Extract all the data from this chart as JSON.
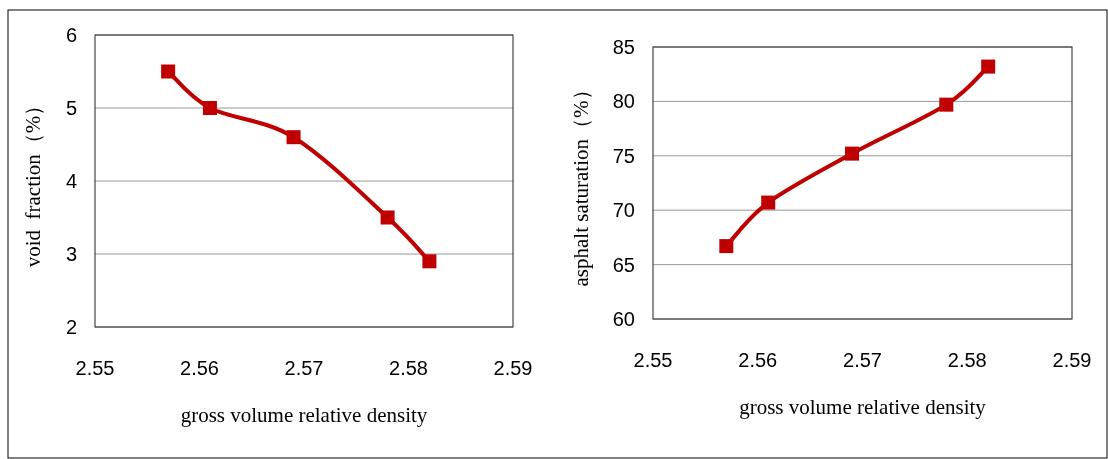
{
  "chart_data": [
    {
      "type": "line",
      "xlabel": "gross volume relative density",
      "ylabel": "void  fraction（%）",
      "x": [
        2.557,
        2.561,
        2.569,
        2.578,
        2.582
      ],
      "series": [
        {
          "color": "#c00000",
          "values": [
            5.5,
            5.0,
            4.6,
            3.5,
            2.9
          ]
        }
      ],
      "xlim": [
        2.55,
        2.59
      ],
      "xticks": [
        2.55,
        2.56,
        2.57,
        2.58,
        2.59
      ],
      "ylim": [
        2,
        6
      ],
      "yticks": [
        2,
        3,
        4,
        5,
        6
      ],
      "grid": "y",
      "marker": "square",
      "line_style": "solid"
    },
    {
      "type": "line",
      "xlabel": "gross volume relative density",
      "ylabel": "asphalt saturation（%）",
      "x": [
        2.557,
        2.561,
        2.569,
        2.578,
        2.582
      ],
      "series": [
        {
          "color": "#c00000",
          "values": [
            66.7,
            70.7,
            75.2,
            79.7,
            83.2
          ]
        }
      ],
      "xlim": [
        2.55,
        2.59
      ],
      "xticks": [
        2.55,
        2.56,
        2.57,
        2.58,
        2.59
      ],
      "ylim": [
        60,
        85
      ],
      "yticks": [
        60,
        65,
        70,
        75,
        80,
        85
      ],
      "grid": "y",
      "marker": "square",
      "line_style": "solid"
    }
  ]
}
